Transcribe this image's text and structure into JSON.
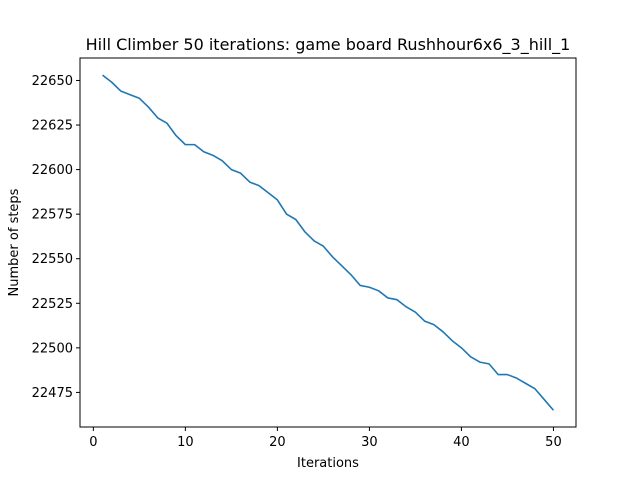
{
  "chart_data": {
    "type": "line",
    "title": "Hill Climber 50 iterations: game board Rushhour6x6_3_hill_1",
    "xlabel": "Iterations",
    "ylabel": "Number of steps",
    "xlim": [
      -1.45,
      52.45
    ],
    "ylim": [
      22455.6,
      22662.6
    ],
    "xticks": [
      0,
      10,
      20,
      30,
      40,
      50
    ],
    "yticks": [
      22475,
      22500,
      22525,
      22550,
      22575,
      22600,
      22625,
      22650
    ],
    "grid": false,
    "legend": "none",
    "series": [
      {
        "color": "#1f77b4",
        "x": [
          1,
          2,
          3,
          4,
          5,
          6,
          7,
          8,
          9,
          10,
          11,
          12,
          13,
          14,
          15,
          16,
          17,
          18,
          19,
          20,
          21,
          22,
          23,
          24,
          25,
          26,
          27,
          28,
          29,
          30,
          31,
          32,
          33,
          34,
          35,
          36,
          37,
          38,
          39,
          40,
          41,
          42,
          43,
          44,
          45,
          46,
          47,
          48,
          49,
          50
        ],
        "values": [
          22653,
          22649,
          22644,
          22642,
          22640,
          22635,
          22629,
          22626,
          22619,
          22614,
          22614,
          22610,
          22608,
          22605,
          22600,
          22598,
          22593,
          22591,
          22587,
          22583,
          22575,
          22572,
          22565,
          22560,
          22557,
          22551,
          22546,
          22541,
          22535,
          22534,
          22532,
          22528,
          22527,
          22523,
          22520,
          22515,
          22513,
          22509,
          22504,
          22500,
          22495,
          22492,
          22491,
          22485,
          22485,
          22483,
          22480,
          22477,
          22471,
          22465
        ]
      }
    ]
  }
}
